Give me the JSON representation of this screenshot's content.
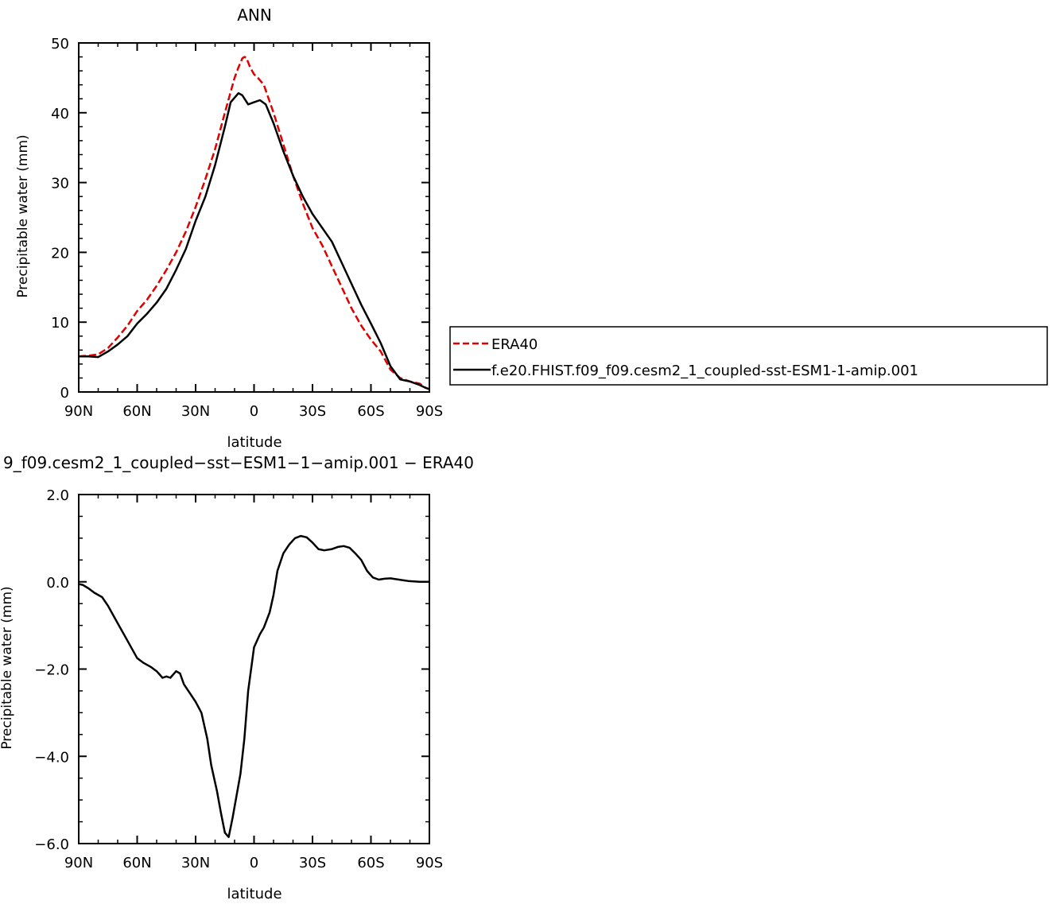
{
  "chart_data": [
    {
      "type": "line",
      "title": "ANN",
      "xlabel": "latitude",
      "ylabel": "Precipitable water (mm)",
      "xlim": [
        90,
        -90
      ],
      "ylim": [
        0,
        50
      ],
      "x_ticks": [
        {
          "value": 90,
          "label": "90N"
        },
        {
          "value": 60,
          "label": "60N"
        },
        {
          "value": 30,
          "label": "30N"
        },
        {
          "value": 0,
          "label": "0"
        },
        {
          "value": -30,
          "label": "30S"
        },
        {
          "value": -60,
          "label": "60S"
        },
        {
          "value": -90,
          "label": "90S"
        }
      ],
      "y_ticks": [
        {
          "value": 0,
          "label": "0"
        },
        {
          "value": 10,
          "label": "10"
        },
        {
          "value": 20,
          "label": "20"
        },
        {
          "value": 30,
          "label": "30"
        },
        {
          "value": 40,
          "label": "40"
        },
        {
          "value": 50,
          "label": "50"
        }
      ],
      "legend": {
        "placement": "right"
      },
      "series": [
        {
          "name": "ERA40",
          "color": "#e00000",
          "dash": "dashed",
          "points": [
            [
              90,
              5.1
            ],
            [
              85,
              5.2
            ],
            [
              80,
              5.4
            ],
            [
              75,
              6.3
            ],
            [
              70,
              7.8
            ],
            [
              65,
              9.5
            ],
            [
              60,
              11.6
            ],
            [
              55,
              13.2
            ],
            [
              50,
              15.2
            ],
            [
              45,
              17.5
            ],
            [
              40,
              20.0
            ],
            [
              35,
              23.0
            ],
            [
              30,
              26.5
            ],
            [
              25,
              30.5
            ],
            [
              20,
              34.8
            ],
            [
              15,
              40.0
            ],
            [
              10,
              45.0
            ],
            [
              8,
              46.5
            ],
            [
              6,
              47.8
            ],
            [
              5,
              48.0
            ],
            [
              4,
              47.9
            ],
            [
              2,
              46.5
            ],
            [
              0,
              45.5
            ],
            [
              -2,
              45.0
            ],
            [
              -5,
              44.0
            ],
            [
              -10,
              40.0
            ],
            [
              -15,
              35.5
            ],
            [
              -20,
              31.0
            ],
            [
              -25,
              27.0
            ],
            [
              -30,
              23.5
            ],
            [
              -35,
              21.0
            ],
            [
              -40,
              18.0
            ],
            [
              -45,
              15.0
            ],
            [
              -50,
              12.0
            ],
            [
              -55,
              9.5
            ],
            [
              -60,
              7.5
            ],
            [
              -65,
              5.8
            ],
            [
              -70,
              3.2
            ],
            [
              -75,
              2.0
            ],
            [
              -80,
              1.5
            ],
            [
              -85,
              1.2
            ],
            [
              -88,
              0.6
            ],
            [
              -90,
              0.4
            ]
          ]
        },
        {
          "name": "f.e20.FHIST.f09_f09.cesm2_1_coupled-sst-ESM1-1-amip.001",
          "color": "#000000",
          "dash": "solid",
          "points": [
            [
              90,
              5.1
            ],
            [
              85,
              5.1
            ],
            [
              80,
              5.0
            ],
            [
              75,
              5.8
            ],
            [
              70,
              6.8
            ],
            [
              65,
              8.0
            ],
            [
              60,
              9.8
            ],
            [
              55,
              11.2
            ],
            [
              50,
              12.8
            ],
            [
              45,
              14.8
            ],
            [
              40,
              17.5
            ],
            [
              35,
              20.5
            ],
            [
              30,
              24.5
            ],
            [
              25,
              28.0
            ],
            [
              20,
              32.5
            ],
            [
              15,
              38.0
            ],
            [
              12,
              41.5
            ],
            [
              8,
              42.8
            ],
            [
              6,
              42.5
            ],
            [
              3,
              41.2
            ],
            [
              0,
              41.5
            ],
            [
              -3,
              41.8
            ],
            [
              -6,
              41.2
            ],
            [
              -10,
              38.5
            ],
            [
              -15,
              34.5
            ],
            [
              -20,
              31.0
            ],
            [
              -25,
              28.0
            ],
            [
              -30,
              25.5
            ],
            [
              -35,
              23.5
            ],
            [
              -40,
              21.5
            ],
            [
              -45,
              18.5
            ],
            [
              -50,
              15.5
            ],
            [
              -55,
              12.5
            ],
            [
              -60,
              9.8
            ],
            [
              -65,
              7.0
            ],
            [
              -70,
              3.7
            ],
            [
              -75,
              1.8
            ],
            [
              -80,
              1.5
            ],
            [
              -85,
              1.0
            ],
            [
              -88,
              0.6
            ],
            [
              -90,
              0.4
            ]
          ]
        }
      ]
    },
    {
      "type": "line",
      "title": "9_f09.cesm2_1_coupled−sst−ESM1−1−amip.001  −  ERA40",
      "xlabel": "latitude",
      "ylabel": "Precipitable water (mm)",
      "xlim": [
        90,
        -90
      ],
      "ylim": [
        -6.0,
        2.0
      ],
      "x_ticks": [
        {
          "value": 90,
          "label": "90N"
        },
        {
          "value": 60,
          "label": "60N"
        },
        {
          "value": 30,
          "label": "30N"
        },
        {
          "value": 0,
          "label": "0"
        },
        {
          "value": -30,
          "label": "30S"
        },
        {
          "value": -60,
          "label": "60S"
        },
        {
          "value": -90,
          "label": "90S"
        }
      ],
      "y_ticks": [
        {
          "value": 2.0,
          "label": "2.0"
        },
        {
          "value": 0.0,
          "label": "0.0"
        },
        {
          "value": -2.0,
          "label": "−2.0"
        },
        {
          "value": -4.0,
          "label": "−4.0"
        },
        {
          "value": -6.0,
          "label": "−6.0"
        }
      ],
      "series": [
        {
          "color": "#000000",
          "dash": "solid",
          "points": [
            [
              90,
              -0.05
            ],
            [
              88,
              -0.07
            ],
            [
              85,
              -0.15
            ],
            [
              82,
              -0.25
            ],
            [
              78,
              -0.35
            ],
            [
              75,
              -0.55
            ],
            [
              70,
              -0.95
            ],
            [
              65,
              -1.35
            ],
            [
              60,
              -1.75
            ],
            [
              57,
              -1.85
            ],
            [
              53,
              -1.95
            ],
            [
              50,
              -2.05
            ],
            [
              47,
              -2.2
            ],
            [
              45,
              -2.17
            ],
            [
              43,
              -2.2
            ],
            [
              40,
              -2.05
            ],
            [
              38,
              -2.1
            ],
            [
              36,
              -2.35
            ],
            [
              33,
              -2.55
            ],
            [
              30,
              -2.75
            ],
            [
              27,
              -3.0
            ],
            [
              24,
              -3.6
            ],
            [
              22,
              -4.2
            ],
            [
              19,
              -4.8
            ],
            [
              17,
              -5.3
            ],
            [
              15,
              -5.75
            ],
            [
              13,
              -5.85
            ],
            [
              11,
              -5.4
            ],
            [
              9,
              -4.9
            ],
            [
              7,
              -4.4
            ],
            [
              5,
              -3.6
            ],
            [
              3,
              -2.5
            ],
            [
              0,
              -1.5
            ],
            [
              -3,
              -1.2
            ],
            [
              -5,
              -1.05
            ],
            [
              -8,
              -0.7
            ],
            [
              -10,
              -0.3
            ],
            [
              -12,
              0.25
            ],
            [
              -15,
              0.65
            ],
            [
              -18,
              0.85
            ],
            [
              -21,
              1.0
            ],
            [
              -24,
              1.05
            ],
            [
              -27,
              1.02
            ],
            [
              -30,
              0.9
            ],
            [
              -33,
              0.75
            ],
            [
              -36,
              0.72
            ],
            [
              -40,
              0.75
            ],
            [
              -43,
              0.8
            ],
            [
              -46,
              0.82
            ],
            [
              -49,
              0.78
            ],
            [
              -52,
              0.65
            ],
            [
              -55,
              0.5
            ],
            [
              -58,
              0.25
            ],
            [
              -61,
              0.1
            ],
            [
              -64,
              0.05
            ],
            [
              -67,
              0.07
            ],
            [
              -70,
              0.08
            ],
            [
              -73,
              0.06
            ],
            [
              -76,
              0.04
            ],
            [
              -79,
              0.02
            ],
            [
              -82,
              0.01
            ],
            [
              -85,
              0.0
            ],
            [
              -88,
              0.0
            ],
            [
              -90,
              0.0
            ]
          ]
        }
      ]
    }
  ]
}
